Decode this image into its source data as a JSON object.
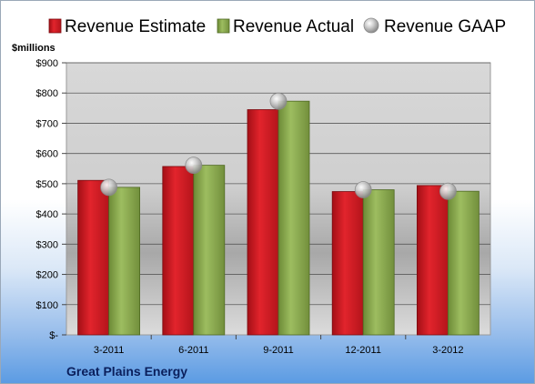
{
  "chart_data": {
    "type": "bar",
    "categories": [
      "3-2011",
      "6-2011",
      "9-2011",
      "12-2011",
      "3-2012"
    ],
    "series": [
      {
        "name": "Revenue Estimate",
        "kind": "bar",
        "color": "#d01c24",
        "values": [
          511,
          557,
          745,
          474,
          494
        ]
      },
      {
        "name": "Revenue Actual",
        "kind": "bar",
        "color": "#8aaa50",
        "values": [
          488,
          561,
          773,
          480,
          475
        ]
      },
      {
        "name": "Revenue GAAP",
        "kind": "marker",
        "color": "#a8a8a8",
        "values": [
          488,
          561,
          773,
          480,
          475
        ]
      }
    ],
    "unit_label": "$millions",
    "y_ticks": [
      "$-",
      "$100",
      "$200",
      "$300",
      "$400",
      "$500",
      "$600",
      "$700",
      "$800",
      "$900"
    ],
    "ylim": [
      0,
      900
    ],
    "grid": true,
    "legend_position": "top",
    "footer": "Great Plains Energy"
  }
}
